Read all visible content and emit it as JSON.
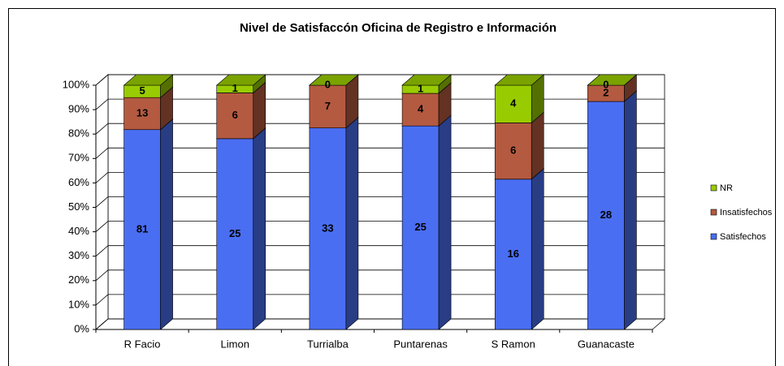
{
  "chart_data": {
    "type": "bar3d_percent_stacked",
    "title": "Nivel de Satisfaccón Oficina de Registro e Información",
    "categories": [
      "R Facio",
      "Limon",
      "Turrialba",
      "Puntarenas",
      "S Ramon",
      "Guanacaste"
    ],
    "series": [
      {
        "name": "Satisfechos",
        "color": "#4a6ef2",
        "values": [
          81,
          25,
          33,
          25,
          16,
          28
        ]
      },
      {
        "name": "Insatisfechos",
        "color": "#b45a40",
        "values": [
          13,
          6,
          7,
          4,
          6,
          2
        ]
      },
      {
        "name": "NR",
        "color": "#99cc00",
        "values": [
          5,
          1,
          0,
          1,
          4,
          0
        ]
      }
    ],
    "percent_stacked": true,
    "ylim": [
      0,
      100
    ],
    "yticks": [
      {
        "value": 0,
        "label": "0%"
      },
      {
        "value": 10,
        "label": "10%"
      },
      {
        "value": 20,
        "label": "20%"
      },
      {
        "value": 30,
        "label": "30%"
      },
      {
        "value": 40,
        "label": "40%"
      },
      {
        "value": 50,
        "label": "50%"
      },
      {
        "value": 60,
        "label": "60%"
      },
      {
        "value": 70,
        "label": "70%"
      },
      {
        "value": 80,
        "label": "80%"
      },
      {
        "value": 90,
        "label": "90%"
      },
      {
        "value": 100,
        "label": "100%"
      }
    ],
    "grid": true,
    "legend": "right"
  }
}
